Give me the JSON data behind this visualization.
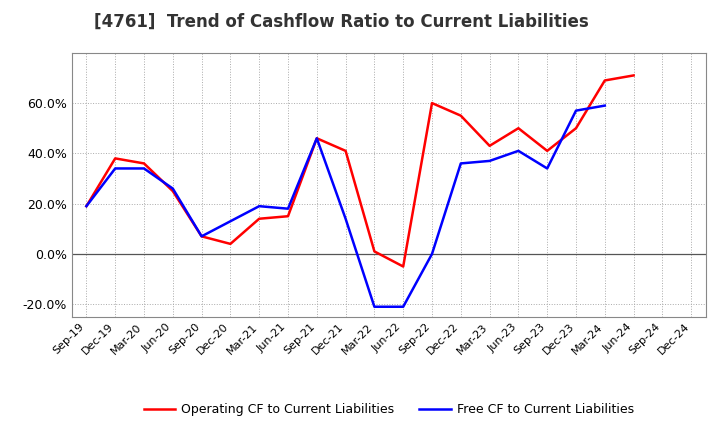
{
  "title": "[4761]  Trend of Cashflow Ratio to Current Liabilities",
  "title_fontsize": 12,
  "x_labels": [
    "Sep-19",
    "Dec-19",
    "Mar-20",
    "Jun-20",
    "Sep-20",
    "Dec-20",
    "Mar-21",
    "Jun-21",
    "Sep-21",
    "Dec-21",
    "Mar-22",
    "Jun-22",
    "Sep-22",
    "Dec-22",
    "Mar-23",
    "Jun-23",
    "Sep-23",
    "Dec-23",
    "Mar-24",
    "Jun-24",
    "Sep-24",
    "Dec-24"
  ],
  "operating_cf": [
    0.19,
    0.38,
    0.36,
    0.25,
    0.07,
    0.04,
    0.14,
    0.15,
    0.46,
    0.41,
    0.01,
    -0.05,
    0.6,
    0.55,
    0.43,
    0.5,
    0.41,
    0.5,
    0.69,
    0.71,
    null,
    null
  ],
  "free_cf": [
    0.19,
    0.34,
    0.34,
    0.26,
    0.07,
    0.13,
    0.19,
    0.18,
    0.46,
    0.14,
    -0.21,
    -0.21,
    0.0,
    0.36,
    0.37,
    0.41,
    0.34,
    0.57,
    0.59,
    null,
    null,
    null
  ],
  "operating_color": "#FF0000",
  "free_color": "#0000FF",
  "ylim": [
    -0.25,
    0.8
  ],
  "yticks": [
    -0.2,
    0.0,
    0.2,
    0.4,
    0.6
  ],
  "grid_color": "#AAAAAA",
  "background_color": "#FFFFFF",
  "legend_op": "Operating CF to Current Liabilities",
  "legend_free": "Free CF to Current Liabilities"
}
